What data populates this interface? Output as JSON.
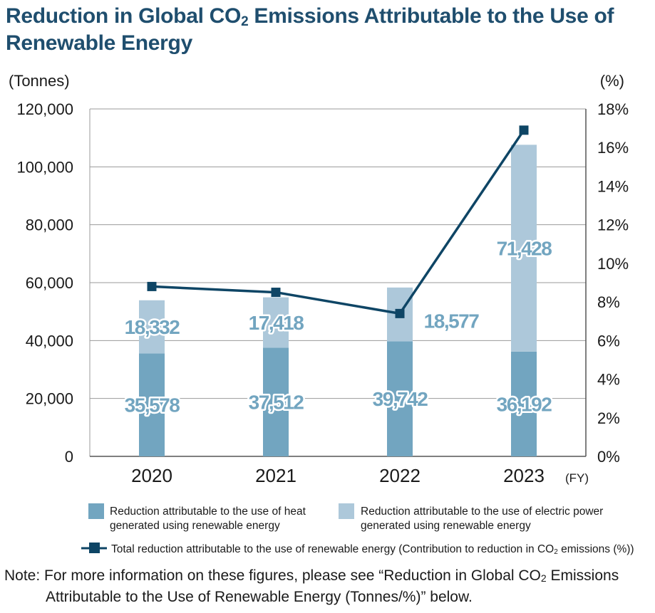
{
  "title": {
    "part1": "Reduction in Global CO",
    "sub": "2",
    "part2": " Emissions Attributable to the Use of",
    "line2": "Renewable Energy"
  },
  "chart_data": {
    "type": "bar",
    "stacked": true,
    "categories": [
      "2020",
      "2021",
      "2022",
      "2023"
    ],
    "xlabel": "(FY)",
    "ylabel": "(Tonnes)",
    "y2label": "(%)",
    "ylim": [
      0,
      120000
    ],
    "y2lim": [
      0,
      18
    ],
    "yticks": [
      "0",
      "20,000",
      "40,000",
      "60,000",
      "80,000",
      "100,000",
      "120,000"
    ],
    "y2ticks": [
      "0%",
      "2%",
      "4%",
      "6%",
      "8%",
      "10%",
      "12%",
      "14%",
      "16%",
      "18%"
    ],
    "grid": true,
    "series": [
      {
        "name": "Reduction attributable to the use of heat generated using renewable energy",
        "values": [
          35578,
          37512,
          39742,
          36192
        ],
        "labels": [
          "35,578",
          "37,512",
          "39,742",
          "36,192"
        ],
        "color": "#72a5c0"
      },
      {
        "name": "Reduction attributable to the use of electric power generated using renewable energy",
        "values": [
          18332,
          17418,
          18577,
          71428
        ],
        "labels": [
          "18,332",
          "17,418",
          "18,577",
          "71,428"
        ],
        "color": "#adc8da"
      }
    ],
    "line_series": {
      "name": "Total reduction attributable to the use of renewable energy (Contribution to reduction in CO2 emissions (%))",
      "axis": "y2",
      "values": [
        8.8,
        8.5,
        7.4,
        16.9
      ],
      "color": "#0e4565"
    }
  },
  "legend": {
    "heat_line1": "Reduction attributable to the use of heat",
    "heat_line2": "generated using renewable energy",
    "elec_line1": "Reduction attributable to the use of electric power",
    "elec_line2": "generated using renewable energy",
    "total_text": "Total reduction attributable to the use of renewable energy (Contribution to reduction in CO",
    "total_sub": "2",
    "total_tail": " emissions (%))"
  },
  "note": {
    "line1_a": "Note: For more information on these figures, please see “Reduction in Global CO",
    "line1_sub": "2",
    "line1_b": " Emissions",
    "line2": "Attributable to the Use of Renewable Energy (Tonnes/%)” below."
  }
}
